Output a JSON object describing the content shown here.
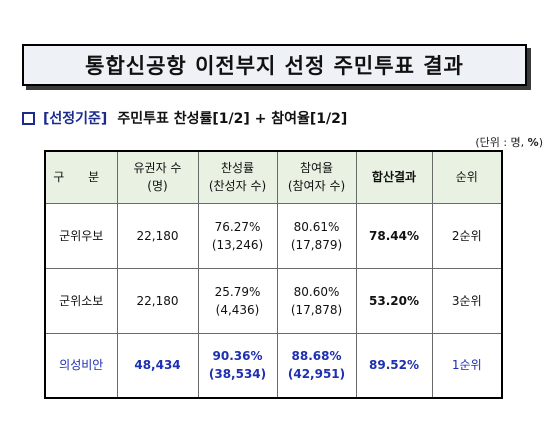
{
  "title": "통합신공항 이전부지 선정 주민투표 결과",
  "criteria": {
    "label": "[선정기준]",
    "text": "주민투표 찬성률[1/2] + 참여율[1/2]"
  },
  "unit": {
    "prefix": "(단위 : 명, ",
    "percent": "%",
    "suffix": ")"
  },
  "table": {
    "headers": {
      "category": "구 분",
      "voters_line1": "유권자 수",
      "voters_line2": "(명)",
      "approval_line1": "찬성률",
      "approval_line2": "(찬성자 수)",
      "turnout_line1": "참여율",
      "turnout_line2": "(참여자 수)",
      "combined": "합산결과",
      "rank": "순위"
    },
    "rows": [
      {
        "name": "군위우보",
        "voters": "22,180",
        "approval_rate": "76.27%",
        "approval_count": "(13,246)",
        "turnout_rate": "80.61%",
        "turnout_count": "(17,879)",
        "combined": "78.44%",
        "rank": "2순위"
      },
      {
        "name": "군위소보",
        "voters": "22,180",
        "approval_rate": "25.79%",
        "approval_count": "(4,436)",
        "turnout_rate": "80.60%",
        "turnout_count": "(17,878)",
        "combined": "53.20%",
        "rank": "3순위"
      },
      {
        "name": "의성비안",
        "voters": "48,434",
        "approval_rate": "90.36%",
        "approval_count": "(38,534)",
        "turnout_rate": "88.68%",
        "turnout_count": "(42,951)",
        "combined": "89.52%",
        "rank": "1순위"
      }
    ]
  },
  "colors": {
    "highlight_blue": "#1e2fb0",
    "header_bg": "#e9f1e2"
  }
}
